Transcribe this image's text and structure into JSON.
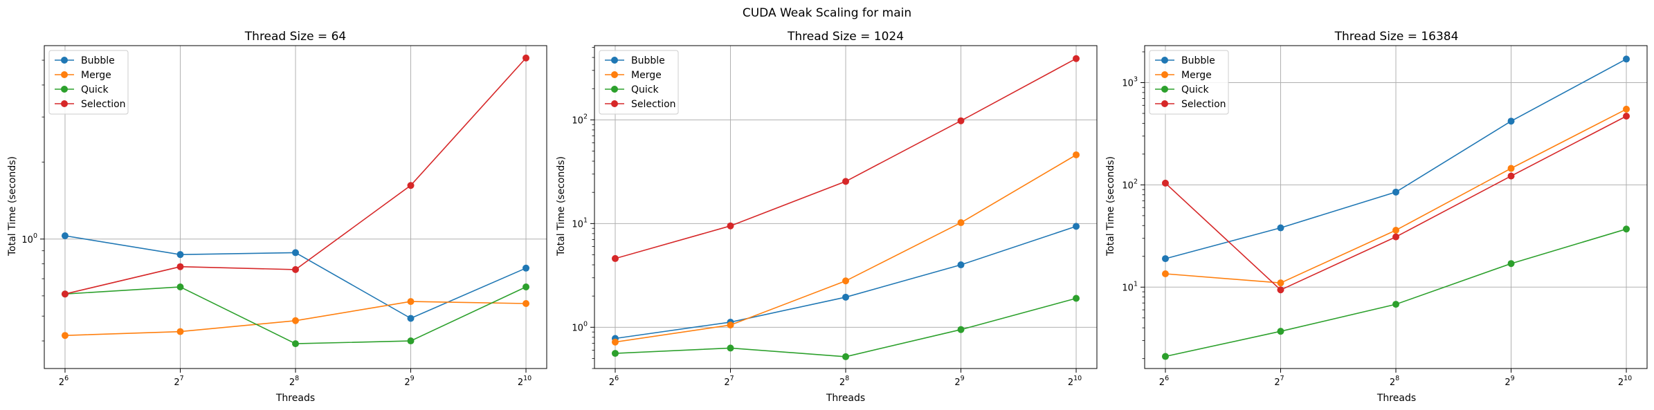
{
  "figure": {
    "title": "CUDA Weak Scaling for main",
    "colors": {
      "Bubble": "#1f77b4",
      "Merge": "#ff7f0e",
      "Quick": "#2ca02c",
      "Selection": "#d62728"
    }
  },
  "chart_data": [
    {
      "type": "line",
      "title": "Thread Size = 64",
      "xlabel": "Threads",
      "ylabel": "Total Time (seconds)",
      "xscale": "log2",
      "yscale": "log10",
      "x": [
        64,
        128,
        256,
        512,
        1024
      ],
      "x_ticks": [
        {
          "base": "2",
          "exp": "6"
        },
        {
          "base": "2",
          "exp": "7"
        },
        {
          "base": "2",
          "exp": "8"
        },
        {
          "base": "2",
          "exp": "9"
        },
        {
          "base": "2",
          "exp": "10"
        }
      ],
      "y_ticks": [
        {
          "base": "10",
          "exp": "0",
          "value": 1
        }
      ],
      "ylim": [
        0.312,
        5.7
      ],
      "grid": true,
      "legend": "upper left",
      "series": [
        {
          "name": "Bubble",
          "values": [
            1.03,
            0.87,
            0.885,
            0.49,
            0.77
          ]
        },
        {
          "name": "Merge",
          "values": [
            0.42,
            0.435,
            0.48,
            0.57,
            0.56
          ]
        },
        {
          "name": "Quick",
          "values": [
            0.61,
            0.65,
            0.39,
            0.4,
            0.65
          ]
        },
        {
          "name": "Selection",
          "values": [
            0.61,
            0.78,
            0.76,
            1.62,
            5.1
          ]
        }
      ]
    },
    {
      "type": "line",
      "title": "Thread Size = 1024",
      "xlabel": "Threads",
      "ylabel": "Total Time (seconds)",
      "xscale": "log2",
      "yscale": "log10",
      "x": [
        64,
        128,
        256,
        512,
        1024
      ],
      "x_ticks": [
        {
          "base": "2",
          "exp": "6"
        },
        {
          "base": "2",
          "exp": "7"
        },
        {
          "base": "2",
          "exp": "8"
        },
        {
          "base": "2",
          "exp": "9"
        },
        {
          "base": "2",
          "exp": "10"
        }
      ],
      "y_ticks": [
        {
          "base": "10",
          "exp": "0",
          "value": 1
        },
        {
          "base": "10",
          "exp": "1",
          "value": 10
        },
        {
          "base": "10",
          "exp": "2",
          "value": 100
        }
      ],
      "ylim": [
        0.4,
        520
      ],
      "grid": true,
      "legend": "upper left",
      "series": [
        {
          "name": "Bubble",
          "values": [
            0.78,
            1.12,
            1.95,
            4.0,
            9.4
          ]
        },
        {
          "name": "Merge",
          "values": [
            0.72,
            1.05,
            2.8,
            10.2,
            46.0
          ]
        },
        {
          "name": "Quick",
          "values": [
            0.56,
            0.63,
            0.52,
            0.95,
            1.9
          ]
        },
        {
          "name": "Selection",
          "values": [
            4.6,
            9.5,
            25.5,
            98.0,
            390.0
          ]
        }
      ]
    },
    {
      "type": "line",
      "title": "Thread Size = 16384",
      "xlabel": "Threads",
      "ylabel": "Total Time (seconds)",
      "xscale": "log2",
      "yscale": "log10",
      "x": [
        64,
        128,
        256,
        512,
        1024
      ],
      "x_ticks": [
        {
          "base": "2",
          "exp": "6"
        },
        {
          "base": "2",
          "exp": "7"
        },
        {
          "base": "2",
          "exp": "8"
        },
        {
          "base": "2",
          "exp": "9"
        },
        {
          "base": "2",
          "exp": "10"
        }
      ],
      "y_ticks": [
        {
          "base": "10",
          "exp": "1",
          "value": 10
        },
        {
          "base": "10",
          "exp": "2",
          "value": 100
        },
        {
          "base": "10",
          "exp": "3",
          "value": 1000
        }
      ],
      "ylim": [
        1.6,
        2300
      ],
      "grid": true,
      "legend": "upper left",
      "series": [
        {
          "name": "Bubble",
          "values": [
            19.0,
            38.0,
            85.0,
            420.0,
            1700.0
          ]
        },
        {
          "name": "Merge",
          "values": [
            13.5,
            11.0,
            36.0,
            145.0,
            550.0
          ]
        },
        {
          "name": "Quick",
          "values": [
            2.1,
            3.7,
            6.8,
            17.0,
            37.0
          ]
        },
        {
          "name": "Selection",
          "values": [
            104.0,
            9.4,
            31.0,
            122.0,
            470.0
          ]
        }
      ]
    }
  ]
}
